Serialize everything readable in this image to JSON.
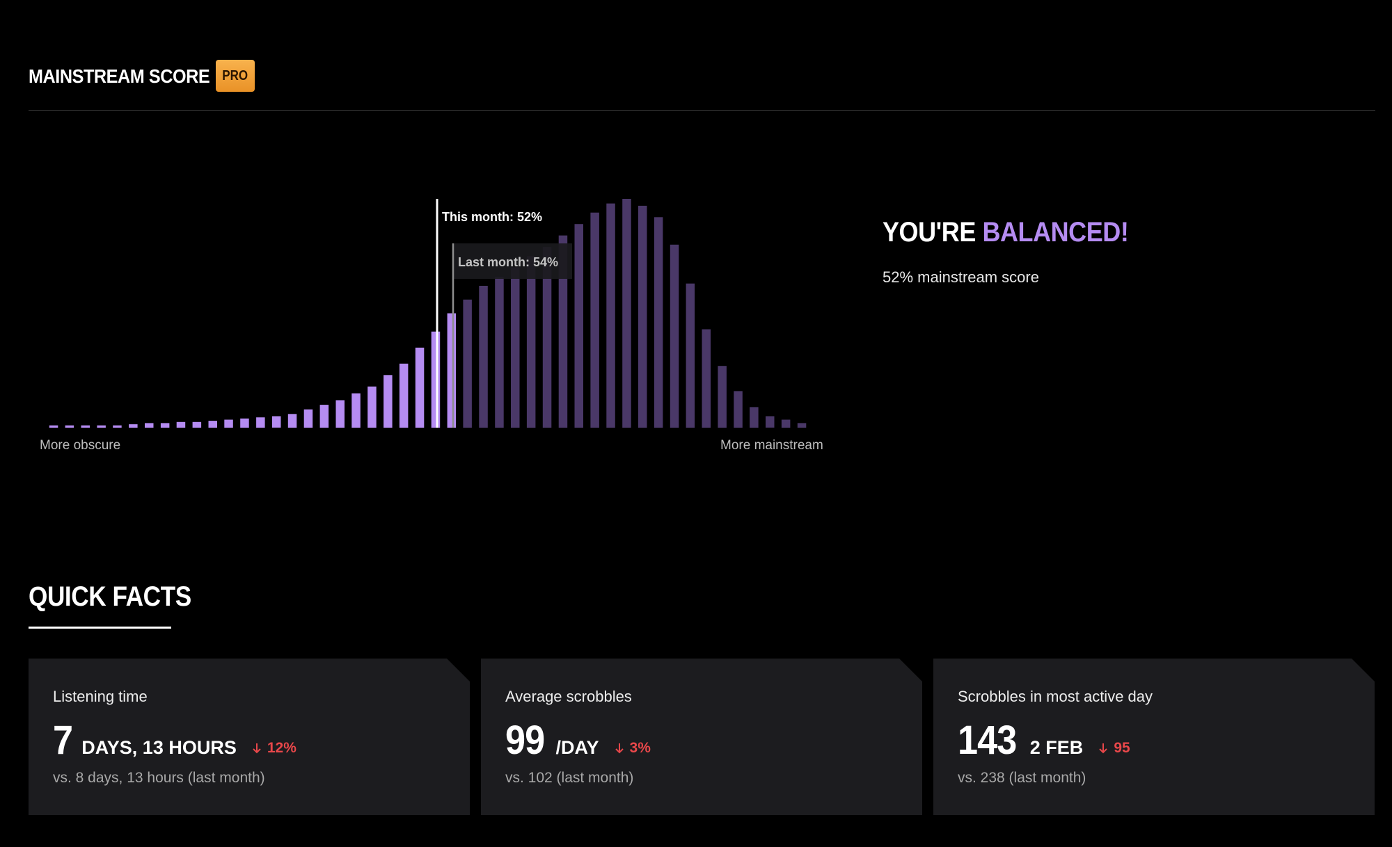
{
  "header": {
    "title": "MAINSTREAM SCORE",
    "pro_badge": "PRO"
  },
  "chart_data": {
    "type": "bar",
    "x_left_label": "More obscure",
    "x_right_label": "More mainstream",
    "values": [
      1,
      1,
      1,
      1,
      1,
      1.5,
      2,
      2,
      2.5,
      2.5,
      3,
      3.5,
      4,
      4.5,
      5,
      6,
      8,
      10,
      12,
      15,
      18,
      23,
      28,
      35,
      42,
      50,
      56,
      62,
      66,
      70,
      75,
      79,
      84,
      89,
      94,
      98,
      100,
      97,
      92,
      80,
      63,
      43,
      27,
      16,
      9,
      5,
      3.5,
      2
    ],
    "highlighted_count": 26,
    "highlight_color": "#b58cf2",
    "base_color": "#4a3868",
    "markers": [
      {
        "label": "This month: 52%",
        "percent": 52
      },
      {
        "label": "Last month: 54%",
        "percent": 54
      }
    ]
  },
  "verdict": {
    "prefix": "YOU'RE ",
    "accent": "BALANCED!",
    "accent_color": "#b58cf2",
    "subtitle": "52% mainstream score"
  },
  "quick_facts": {
    "title": "QUICK FACTS",
    "cards": [
      {
        "label": "Listening time",
        "value": "7",
        "unit": "DAYS, 13 HOURS",
        "delta": "12%",
        "compare": "vs. 8 days, 13 hours (last month)"
      },
      {
        "label": "Average scrobbles",
        "value": "99",
        "unit": "/DAY",
        "delta": "3%",
        "compare": "vs. 102 (last month)"
      },
      {
        "label": "Scrobbles in most active day",
        "value": "143",
        "unit": "2 FEB",
        "delta": "95",
        "compare": "vs. 238 (last month)"
      }
    ],
    "delta_color": "#e9474a"
  }
}
